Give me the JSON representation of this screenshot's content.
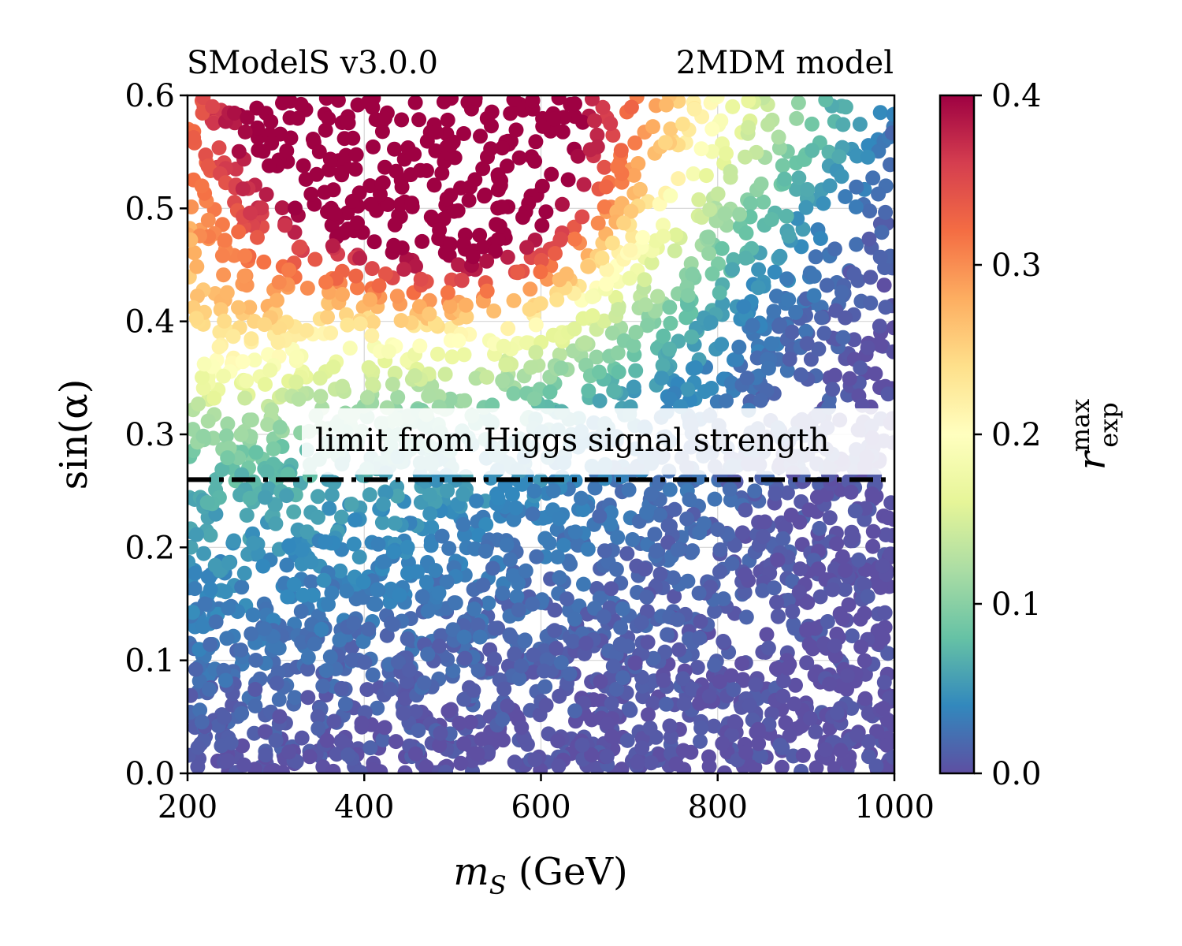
{
  "chart_data": {
    "type": "scatter",
    "title_left": "SModelS v3.0.0",
    "title_right": "2MDM model",
    "xlabel": "m_S (GeV)",
    "xlabel_main": "m",
    "xlabel_sub": "S",
    "xlabel_unit": " (GeV)",
    "ylabel": "sin(α)",
    "colorbar_label": "r_exp^max",
    "colorbar_label_main": "r",
    "colorbar_label_sup": "max",
    "colorbar_label_sub": "exp",
    "xlim": [
      200,
      1000
    ],
    "ylim": [
      0.0,
      0.6
    ],
    "clim": [
      0.0,
      0.4
    ],
    "xticks": [
      200,
      400,
      600,
      800,
      1000
    ],
    "xtick_labels": [
      "200",
      "400",
      "600",
      "800",
      "1000"
    ],
    "yticks": [
      0.0,
      0.1,
      0.2,
      0.3,
      0.4,
      0.5,
      0.6
    ],
    "ytick_labels": [
      "0.0",
      "0.1",
      "0.2",
      "0.3",
      "0.4",
      "0.5",
      "0.6"
    ],
    "cticks": [
      0.0,
      0.1,
      0.2,
      0.3,
      0.4
    ],
    "ctick_labels": [
      "0.0",
      "0.1",
      "0.2",
      "0.3",
      "0.4"
    ],
    "grid": true,
    "colormap": "Spectral_r",
    "colormap_stops": [
      "#5e4fa2",
      "#3288bd",
      "#66c2a5",
      "#abdda4",
      "#e6f598",
      "#ffffbf",
      "#fee08b",
      "#fdae61",
      "#f46d43",
      "#d53e4f",
      "#9e0142"
    ],
    "limit_line": {
      "y": 0.26,
      "style": "dash-dot",
      "color": "#000000",
      "label": "limit from Higgs signal strength"
    },
    "n_points": 3200,
    "points_note": "Scatter of scan points; color encodes r_exp^max. Highest values (≈0.4) at low m_S and large sin(α) (≈0.45–0.6); values fall toward 0 for sin(α) < 0.2 and at high m_S.",
    "color_field_samples": [
      {
        "x": 250,
        "y": 0.58,
        "r": 0.4
      },
      {
        "x": 450,
        "y": 0.55,
        "r": 0.4
      },
      {
        "x": 550,
        "y": 0.52,
        "r": 0.36
      },
      {
        "x": 650,
        "y": 0.56,
        "r": 0.28
      },
      {
        "x": 800,
        "y": 0.58,
        "r": 0.16
      },
      {
        "x": 980,
        "y": 0.58,
        "r": 0.1
      },
      {
        "x": 250,
        "y": 0.46,
        "r": 0.28
      },
      {
        "x": 250,
        "y": 0.38,
        "r": 0.18
      },
      {
        "x": 450,
        "y": 0.44,
        "r": 0.3
      },
      {
        "x": 700,
        "y": 0.42,
        "r": 0.12
      },
      {
        "x": 950,
        "y": 0.42,
        "r": 0.05
      },
      {
        "x": 300,
        "y": 0.3,
        "r": 0.14
      },
      {
        "x": 600,
        "y": 0.3,
        "r": 0.1
      },
      {
        "x": 950,
        "y": 0.3,
        "r": 0.02
      },
      {
        "x": 300,
        "y": 0.22,
        "r": 0.08
      },
      {
        "x": 600,
        "y": 0.2,
        "r": 0.05
      },
      {
        "x": 300,
        "y": 0.05,
        "r": 0.005
      },
      {
        "x": 900,
        "y": 0.05,
        "r": 0.0
      }
    ]
  }
}
